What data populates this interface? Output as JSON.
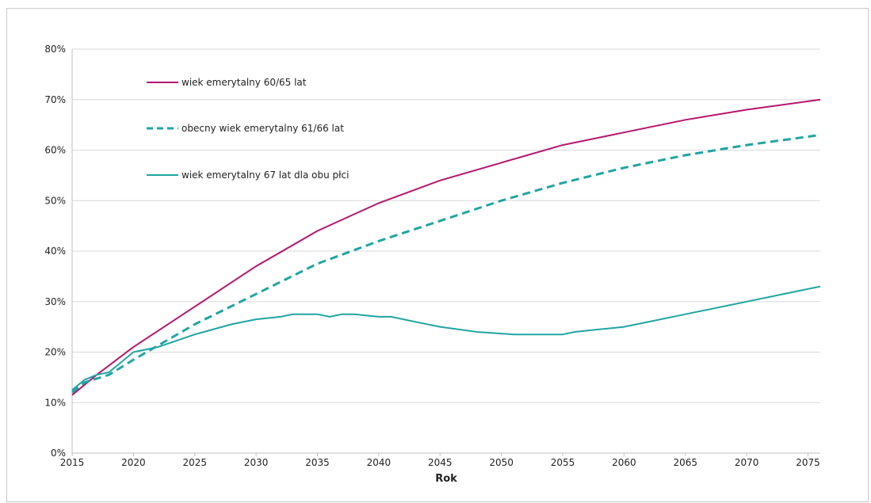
{
  "chart_data": {
    "type": "line",
    "title": "",
    "xlabel": "Rok",
    "ylabel": "",
    "xlim": [
      2015,
      2076
    ],
    "ylim": [
      0,
      80
    ],
    "y_unit": "%",
    "grid": "horizontal",
    "legend_position": "top-left (inside plot)",
    "x_ticks": [
      "2015",
      "2020",
      "2025",
      "2030",
      "2035",
      "2040",
      "2045",
      "2050",
      "2055",
      "2060",
      "2065",
      "2070",
      "2075"
    ],
    "y_ticks": [
      "0%",
      "10%",
      "20%",
      "30%",
      "40%",
      "50%",
      "60%",
      "70%",
      "80%"
    ],
    "series": [
      {
        "name": "wiek emerytalny 60/65 lat",
        "color": "#b5156d",
        "style": "solid",
        "x": [
          2015,
          2017,
          2020,
          2025,
          2030,
          2035,
          2040,
          2045,
          2050,
          2055,
          2060,
          2065,
          2070,
          2076
        ],
        "values": [
          11.5,
          15.5,
          21,
          29,
          37,
          44,
          49.5,
          54,
          57.5,
          61,
          63.5,
          66,
          68,
          70
        ]
      },
      {
        "name": "obecny wiek emerytalny 61/66 lat",
        "color": "#1fa5a2",
        "style": "dashed",
        "x": [
          2015,
          2016,
          2018,
          2020,
          2025,
          2030,
          2035,
          2040,
          2045,
          2050,
          2055,
          2060,
          2065,
          2070,
          2076
        ],
        "values": [
          12,
          14,
          15.5,
          18.5,
          25.5,
          31.5,
          37.5,
          42,
          46,
          50,
          53.5,
          56.5,
          59,
          61,
          63
        ]
      },
      {
        "name": "wiek emerytalny 67 lat dla obu płci",
        "color": "#1fa5a2",
        "style": "solid",
        "x": [
          2015,
          2016,
          2017,
          2018,
          2020,
          2022,
          2025,
          2028,
          2030,
          2032,
          2033,
          2035,
          2036,
          2037,
          2038,
          2040,
          2041,
          2043,
          2045,
          2048,
          2051,
          2055,
          2056,
          2058,
          2060,
          2065,
          2070,
          2076
        ],
        "values": [
          12.5,
          14.5,
          15.5,
          16,
          20,
          21,
          23.5,
          25.5,
          26.5,
          27,
          27.5,
          27.5,
          27,
          27.5,
          27.5,
          27,
          27,
          26,
          25,
          24,
          23.5,
          23.5,
          24,
          24.5,
          25,
          27.5,
          30,
          33
        ]
      }
    ]
  }
}
